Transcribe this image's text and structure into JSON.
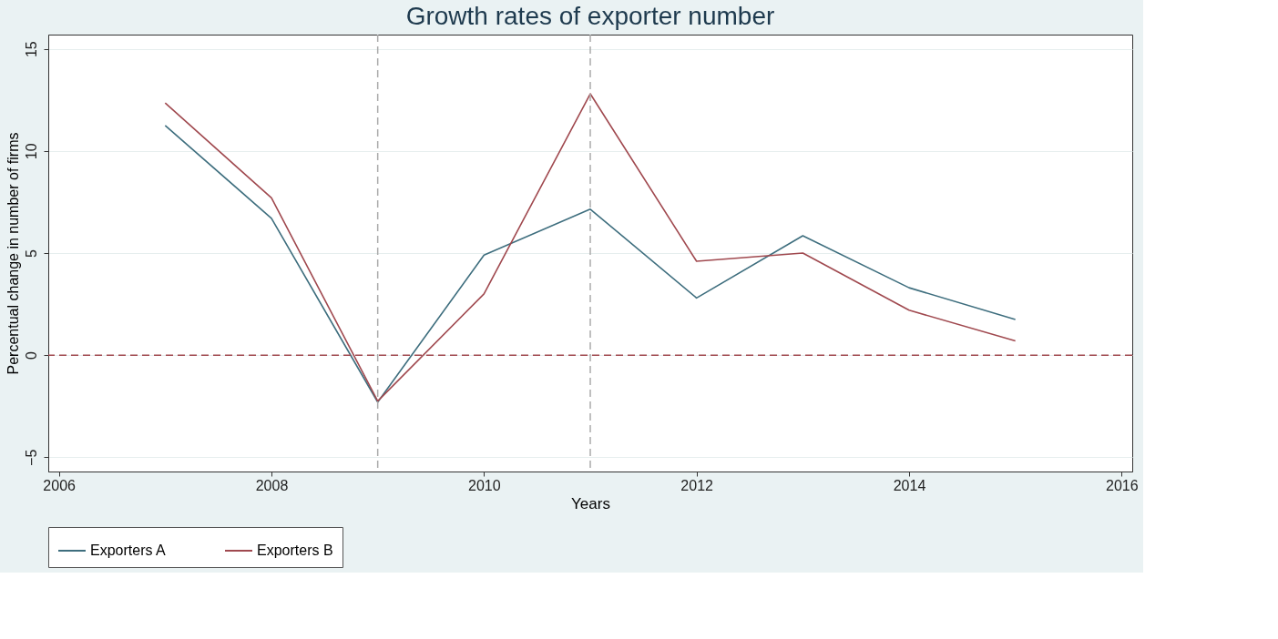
{
  "chart_data": {
    "type": "line",
    "title": "Growth rates of exporter number",
    "xlabel": "Years",
    "ylabel": "Percentual change in number of firms",
    "x": [
      2007,
      2008,
      2009,
      2010,
      2011,
      2012,
      2013,
      2014,
      2015
    ],
    "series": [
      {
        "name": "Exporters A",
        "color": "#3e6e7e",
        "values": [
          11.25,
          6.7,
          -2.3,
          4.9,
          7.15,
          2.8,
          5.85,
          3.3,
          1.75
        ]
      },
      {
        "name": "Exporters B",
        "color": "#a0494f",
        "values": [
          12.35,
          7.7,
          -2.25,
          3.0,
          12.8,
          4.6,
          5.0,
          2.2,
          0.7
        ]
      }
    ],
    "xlim": [
      2005.9,
      2016.1
    ],
    "xticks": [
      2006,
      2008,
      2010,
      2012,
      2014,
      2016
    ],
    "ylim": [
      -5.7,
      15.7
    ],
    "yticks": [
      -5,
      0,
      5,
      10,
      15
    ],
    "ref_lines": [
      {
        "axis": "y",
        "value": 0,
        "color": "#a0494f",
        "line_style": "dashed"
      },
      {
        "axis": "x",
        "value": 2009,
        "color": "#aaaaaa",
        "line_style": "dashed"
      },
      {
        "axis": "x",
        "value": 2011,
        "color": "#aaaaaa",
        "line_style": "dashed"
      }
    ],
    "grid": "y",
    "legend": "bottom",
    "marker": "none",
    "line_style": "solid"
  }
}
